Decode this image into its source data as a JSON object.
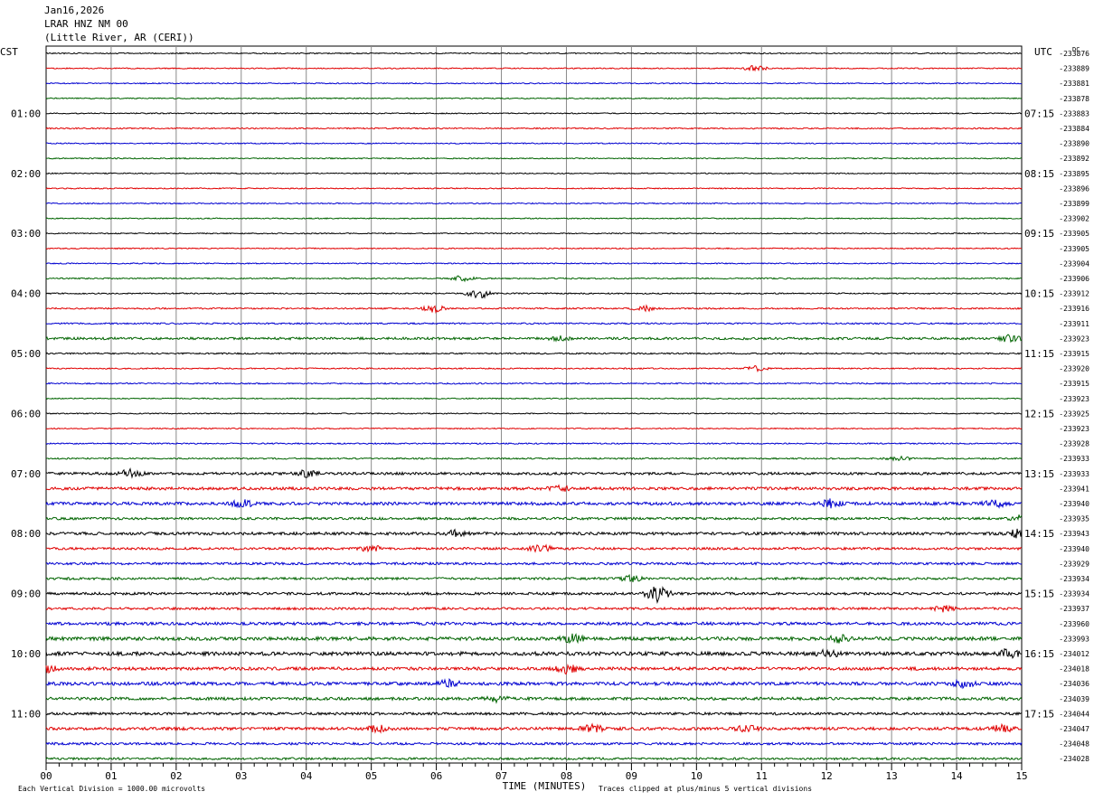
{
  "header": {
    "date": "Jan16,2026",
    "station": "LRAR HNZ NM 00",
    "location": "(Little River, AR (CERI))"
  },
  "chart_data": {
    "type": "line",
    "plot_kind": "helicorder",
    "left_timezone": "CST",
    "right_timezone": "UTC",
    "dc_label": "DC",
    "xlabel": "TIME (MINUTES)",
    "xlim": [
      0,
      15
    ],
    "x_ticks": [
      "00",
      "01",
      "02",
      "03",
      "04",
      "05",
      "06",
      "07",
      "08",
      "09",
      "10",
      "11",
      "12",
      "13",
      "14",
      "15"
    ],
    "left_hour_labels": [
      "01:00",
      "02:00",
      "03:00",
      "04:00",
      "05:00",
      "06:00",
      "07:00",
      "08:00",
      "09:00",
      "10:00",
      "11:00"
    ],
    "right_hour_labels": [
      "07:15",
      "08:15",
      "09:15",
      "10:15",
      "11:15",
      "12:15",
      "13:15",
      "14:15",
      "15:15",
      "16:15",
      "17:15"
    ],
    "trace_colors": [
      "#000000",
      "#e00000",
      "#0000d0",
      "#006400"
    ],
    "dc_offsets": [
      "-233876",
      "-233889",
      "-233881",
      "-233878",
      "-233883",
      "-233884",
      "-233890",
      "-233892",
      "-233895",
      "-233896",
      "-233899",
      "-233902",
      "-233905",
      "-233905",
      "-233904",
      "-233906",
      "-233912",
      "-233916",
      "-233911",
      "-233923",
      "-233915",
      "-233920",
      "-233915",
      "-233923",
      "-233925",
      "-233923",
      "-233928",
      "-233933",
      "-233933",
      "-233941",
      "-233940",
      "-233935",
      "-233943",
      "-233940",
      "-233929",
      "-233934",
      "-233934",
      "-233937",
      "-233960",
      "-233993",
      "-234012",
      "-234018",
      "-234036",
      "-234039",
      "-234044",
      "-234047",
      "-234048",
      "-234028"
    ],
    "noise_level": [
      0.6,
      0.6,
      0.6,
      0.6,
      0.6,
      0.7,
      0.6,
      0.6,
      0.6,
      0.6,
      0.6,
      0.6,
      0.6,
      0.6,
      0.6,
      0.7,
      0.7,
      0.8,
      0.8,
      1.3,
      0.8,
      0.7,
      0.7,
      0.6,
      0.6,
      0.6,
      0.7,
      0.8,
      1.4,
      1.6,
      1.7,
      1.3,
      1.6,
      1.3,
      1.3,
      1.3,
      1.4,
      1.3,
      1.6,
      1.9,
      2.0,
      1.7,
      1.8,
      1.6,
      1.4,
      1.6,
      1.3,
      1.2
    ],
    "bursts": [
      {
        "trace": 1,
        "minute": 10.9,
        "amplitude": 3.0
      },
      {
        "trace": 15,
        "minute": 6.4,
        "amplitude": 3.0
      },
      {
        "trace": 16,
        "minute": 6.65,
        "amplitude": 6.0
      },
      {
        "trace": 17,
        "minute": 5.95,
        "amplitude": 4.0
      },
      {
        "trace": 17,
        "minute": 9.2,
        "amplitude": 3.0
      },
      {
        "trace": 19,
        "minute": 7.9,
        "amplitude": 3.0
      },
      {
        "trace": 19,
        "minute": 14.8,
        "amplitude": 3.5
      },
      {
        "trace": 21,
        "minute": 10.9,
        "amplitude": 3.0
      },
      {
        "trace": 27,
        "minute": 13.1,
        "amplitude": 3.0
      },
      {
        "trace": 28,
        "minute": 1.3,
        "amplitude": 4.5
      },
      {
        "trace": 28,
        "minute": 4.0,
        "amplitude": 3.5
      },
      {
        "trace": 29,
        "minute": 7.9,
        "amplitude": 3.0
      },
      {
        "trace": 30,
        "minute": 3.0,
        "amplitude": 4.0
      },
      {
        "trace": 30,
        "minute": 12.05,
        "amplitude": 4.0
      },
      {
        "trace": 30,
        "minute": 14.6,
        "amplitude": 4.0
      },
      {
        "trace": 31,
        "minute": 15.0,
        "amplitude": 4.0
      },
      {
        "trace": 32,
        "minute": 6.3,
        "amplitude": 4.0
      },
      {
        "trace": 32,
        "minute": 14.95,
        "amplitude": 4.5
      },
      {
        "trace": 33,
        "minute": 7.6,
        "amplitude": 4.0
      },
      {
        "trace": 33,
        "minute": 5.0,
        "amplitude": 3.5
      },
      {
        "trace": 35,
        "minute": 9.0,
        "amplitude": 3.0
      },
      {
        "trace": 36,
        "minute": 9.4,
        "amplitude": 9.0
      },
      {
        "trace": 37,
        "minute": 13.8,
        "amplitude": 3.0
      },
      {
        "trace": 39,
        "minute": 8.1,
        "amplitude": 4.0
      },
      {
        "trace": 39,
        "minute": 12.2,
        "amplitude": 3.5
      },
      {
        "trace": 40,
        "minute": 12.0,
        "amplitude": 4.0
      },
      {
        "trace": 40,
        "minute": 14.8,
        "amplitude": 5.0
      },
      {
        "trace": 41,
        "minute": 8.0,
        "amplitude": 5.0
      },
      {
        "trace": 41,
        "minute": 0.0,
        "amplitude": 4.5
      },
      {
        "trace": 42,
        "minute": 6.2,
        "amplitude": 4.0
      },
      {
        "trace": 42,
        "minute": 14.1,
        "amplitude": 4.0
      },
      {
        "trace": 43,
        "minute": 6.9,
        "amplitude": 4.0
      },
      {
        "trace": 45,
        "minute": 5.1,
        "amplitude": 4.0
      },
      {
        "trace": 45,
        "minute": 8.4,
        "amplitude": 4.0
      },
      {
        "trace": 45,
        "minute": 10.8,
        "amplitude": 4.0
      },
      {
        "trace": 45,
        "minute": 14.7,
        "amplitude": 4.5
      }
    ],
    "footer_left": "Each Vertical Division = 1000.00 microvolts",
    "footer_right": "Traces clipped at plus/minus 5 vertical divisions"
  }
}
